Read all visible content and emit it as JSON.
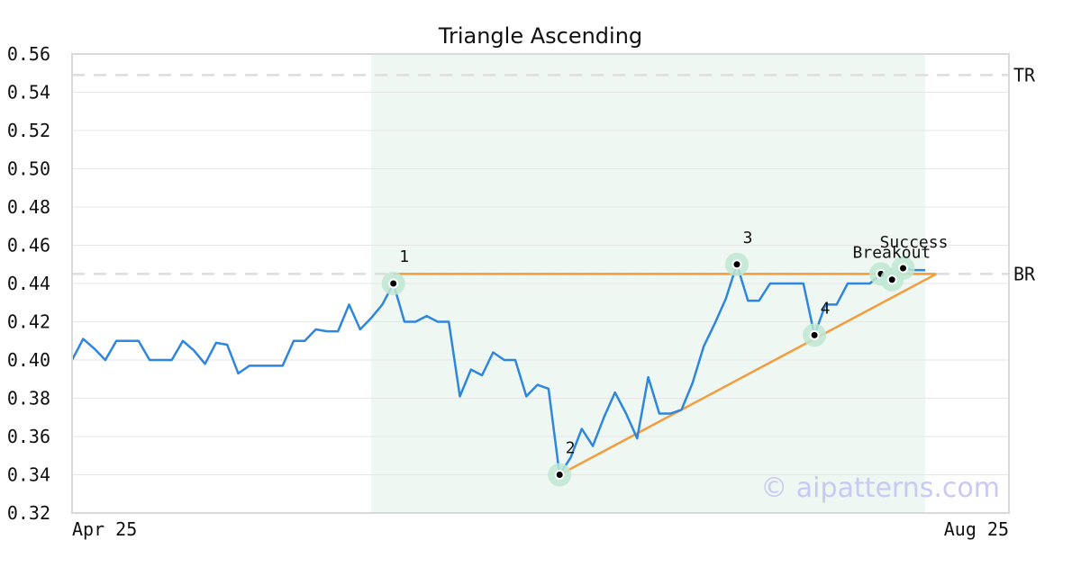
{
  "chart_data": {
    "type": "line",
    "title": "Triangle Ascending",
    "xlabel": "",
    "ylabel": "",
    "ylim": [
      0.32,
      0.56
    ],
    "y_ticks": [
      "0.32",
      "0.34",
      "0.36",
      "0.38",
      "0.40",
      "0.42",
      "0.44",
      "0.46",
      "0.48",
      "0.50",
      "0.52",
      "0.54",
      "0.56"
    ],
    "x_tick_labels": [
      "Apr 25",
      "Aug 25"
    ],
    "grid": true,
    "legend": "none",
    "watermark": "© aipatterns.com",
    "colors": {
      "price": "#2e86de",
      "trendline": "#f39c3c",
      "pattern_zone": "#eef7f2",
      "marker_halo": "#bfe8d3",
      "reference": "#dddddd"
    },
    "reference_lines": [
      {
        "label": "TR",
        "value": 0.549
      },
      {
        "label": "BR",
        "value": 0.445
      }
    ],
    "pattern_zone": {
      "start_index": 27,
      "end_index": 77
    },
    "series": [
      {
        "values": [
          0.4,
          0.411,
          0.406,
          0.4,
          0.41,
          0.41,
          0.41,
          0.4,
          0.4,
          0.4,
          0.41,
          0.405,
          0.398,
          0.409,
          0.408,
          0.393,
          0.397,
          0.397,
          0.397,
          0.397,
          0.41,
          0.41,
          0.416,
          0.415,
          0.415,
          0.429,
          0.416,
          0.422,
          0.429,
          0.44,
          0.42,
          0.42,
          0.423,
          0.42,
          0.42,
          0.381,
          0.395,
          0.392,
          0.404,
          0.4,
          0.4,
          0.381,
          0.387,
          0.385,
          0.34,
          0.349,
          0.364,
          0.355,
          0.37,
          0.383,
          0.372,
          0.359,
          0.391,
          0.372,
          0.372,
          0.374,
          0.388,
          0.407,
          0.419,
          0.432,
          0.45,
          0.431,
          0.431,
          0.44,
          0.44,
          0.44,
          0.44,
          0.413,
          0.429,
          0.429,
          0.44,
          0.44,
          0.44,
          0.445,
          0.442,
          0.448,
          0.447,
          0.447
        ]
      }
    ],
    "annotations": [
      {
        "label": "1",
        "index": 29,
        "value": 0.44
      },
      {
        "label": "2",
        "index": 44,
        "value": 0.34
      },
      {
        "label": "3",
        "index": 60,
        "value": 0.45
      },
      {
        "label": "4",
        "index": 67,
        "value": 0.413
      },
      {
        "label": "Breakout",
        "index": 73,
        "value": 0.445
      },
      {
        "label": "Success",
        "index": 75,
        "value": 0.448
      },
      {
        "label": "",
        "index": 74,
        "value": 0.442
      }
    ],
    "trendlines": [
      {
        "name": "resistance",
        "from": {
          "index": 29,
          "value": 0.445
        },
        "to": {
          "index": 78,
          "value": 0.445
        }
      },
      {
        "name": "support",
        "from": {
          "index": 44,
          "value": 0.34
        },
        "to": {
          "index": 78,
          "value": 0.445
        }
      }
    ]
  }
}
